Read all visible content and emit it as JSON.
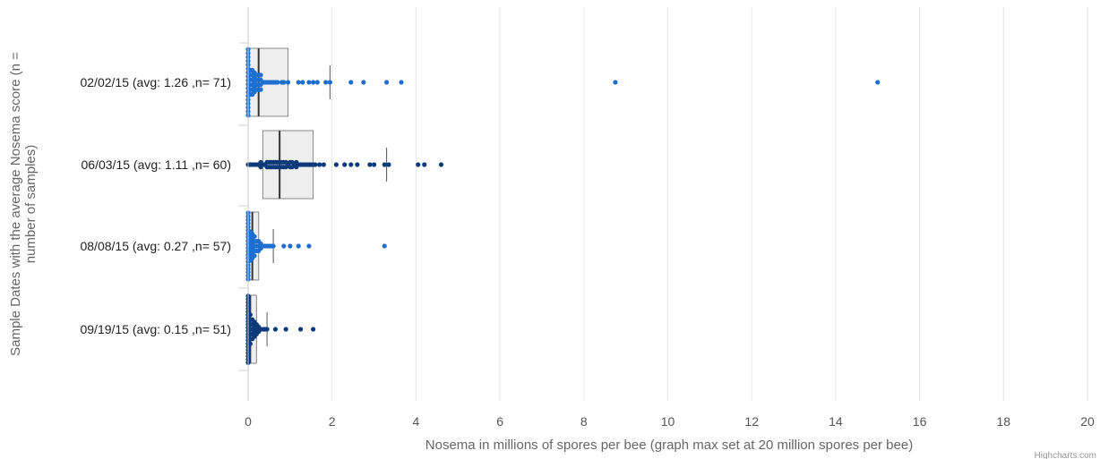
{
  "chart_data": {
    "type": "box-plot-with-points",
    "xlabel": "Nosema in millions of spores per bee (graph max set at 20 million spores per bee)",
    "ylabel": "Sample Dates with the average Nosema score (n = number of samples)",
    "xlim": [
      0,
      20
    ],
    "x_ticks": [
      0,
      2,
      4,
      6,
      8,
      10,
      12,
      14,
      16,
      18,
      20
    ],
    "grid": "vertical",
    "credits": "Highcharts.com",
    "colors": {
      "light_points": "#1f6fd1",
      "dark_points": "#0d3a7a",
      "box_fill": "#eeeeee",
      "box_stroke": "#888888",
      "grid": "#e6e6e6"
    },
    "categories": [
      {
        "label": "02/02/15 (avg: 1.26 ,n= 71)",
        "color": "light",
        "box": {
          "low": 0.0,
          "q1": 0.0,
          "median": 0.25,
          "q3": 0.95,
          "high": 1.95
        },
        "points": [
          0,
          0,
          0,
          0,
          0,
          0,
          0,
          0,
          0,
          0,
          0,
          0,
          0,
          0,
          0,
          0,
          0,
          0,
          0.05,
          0.05,
          0.05,
          0.05,
          0.05,
          0.05,
          0.1,
          0.1,
          0.1,
          0.1,
          0.1,
          0.1,
          0.15,
          0.15,
          0.15,
          0.15,
          0.15,
          0.2,
          0.2,
          0.2,
          0.2,
          0.25,
          0.25,
          0.25,
          0.25,
          0.3,
          0.3,
          0.3,
          0.3,
          0.35,
          0.4,
          0.45,
          0.5,
          0.55,
          0.6,
          0.65,
          0.7,
          0.8,
          0.85,
          0.95,
          1.2,
          1.3,
          1.45,
          1.55,
          1.65,
          1.85,
          1.95,
          2.45,
          2.75,
          3.3,
          3.65,
          8.75,
          15.0
        ]
      },
      {
        "label": "06/03/15 (avg: 1.11 ,n= 60)",
        "color": "dark",
        "box": {
          "low": 0.0,
          "q1": 0.35,
          "median": 0.75,
          "q3": 1.55,
          "high": 3.3
        },
        "points": [
          0,
          0.05,
          0.1,
          0.15,
          0.2,
          0.25,
          0.3,
          0.35,
          0.4,
          0.45,
          0.5,
          0.5,
          0.55,
          0.6,
          0.6,
          0.65,
          0.7,
          0.7,
          0.75,
          0.75,
          0.8,
          0.8,
          0.85,
          0.85,
          0.9,
          0.95,
          1.0,
          1.0,
          1.05,
          1.1,
          1.15,
          1.2,
          1.25,
          1.3,
          1.4,
          1.45,
          1.5,
          1.55,
          1.6,
          1.7,
          1.8,
          2.1,
          2.3,
          2.45,
          2.6,
          2.9,
          3.0,
          3.25,
          3.35,
          4.05,
          4.2,
          4.6,
          0.3,
          0.45,
          0.55,
          0.65,
          0.9,
          1.05,
          1.15,
          1.35
        ]
      },
      {
        "label": "08/08/15 (avg: 0.27 ,n= 57)",
        "color": "light",
        "box": {
          "low": 0.0,
          "q1": 0.0,
          "median": 0.1,
          "q3": 0.25,
          "high": 0.6
        },
        "points": [
          0,
          0,
          0,
          0,
          0,
          0,
          0,
          0,
          0,
          0,
          0,
          0,
          0,
          0,
          0,
          0,
          0,
          0,
          0,
          0,
          0.05,
          0.05,
          0.05,
          0.05,
          0.05,
          0.05,
          0.05,
          0.1,
          0.1,
          0.1,
          0.1,
          0.1,
          0.1,
          0.15,
          0.15,
          0.15,
          0.15,
          0.2,
          0.2,
          0.2,
          0.25,
          0.25,
          0.25,
          0.3,
          0.3,
          0.35,
          0.4,
          0.45,
          0.5,
          0.55,
          0.6,
          0.85,
          1.0,
          1.2,
          1.45,
          3.25,
          0.15
        ]
      },
      {
        "label": "09/19/15 (avg: 0.15 ,n= 51)",
        "color": "dark",
        "box": {
          "low": 0.0,
          "q1": 0.0,
          "median": 0.05,
          "q3": 0.2,
          "high": 0.45
        },
        "points": [
          0,
          0,
          0,
          0,
          0,
          0,
          0,
          0,
          0,
          0,
          0,
          0,
          0,
          0,
          0,
          0,
          0,
          0,
          0,
          0,
          0,
          0,
          0.05,
          0.05,
          0.05,
          0.05,
          0.05,
          0.05,
          0.05,
          0.1,
          0.1,
          0.1,
          0.1,
          0.1,
          0.15,
          0.15,
          0.15,
          0.15,
          0.2,
          0.2,
          0.2,
          0.25,
          0.25,
          0.3,
          0.35,
          0.4,
          0.45,
          0.65,
          0.9,
          1.25,
          1.55
        ]
      }
    ]
  }
}
